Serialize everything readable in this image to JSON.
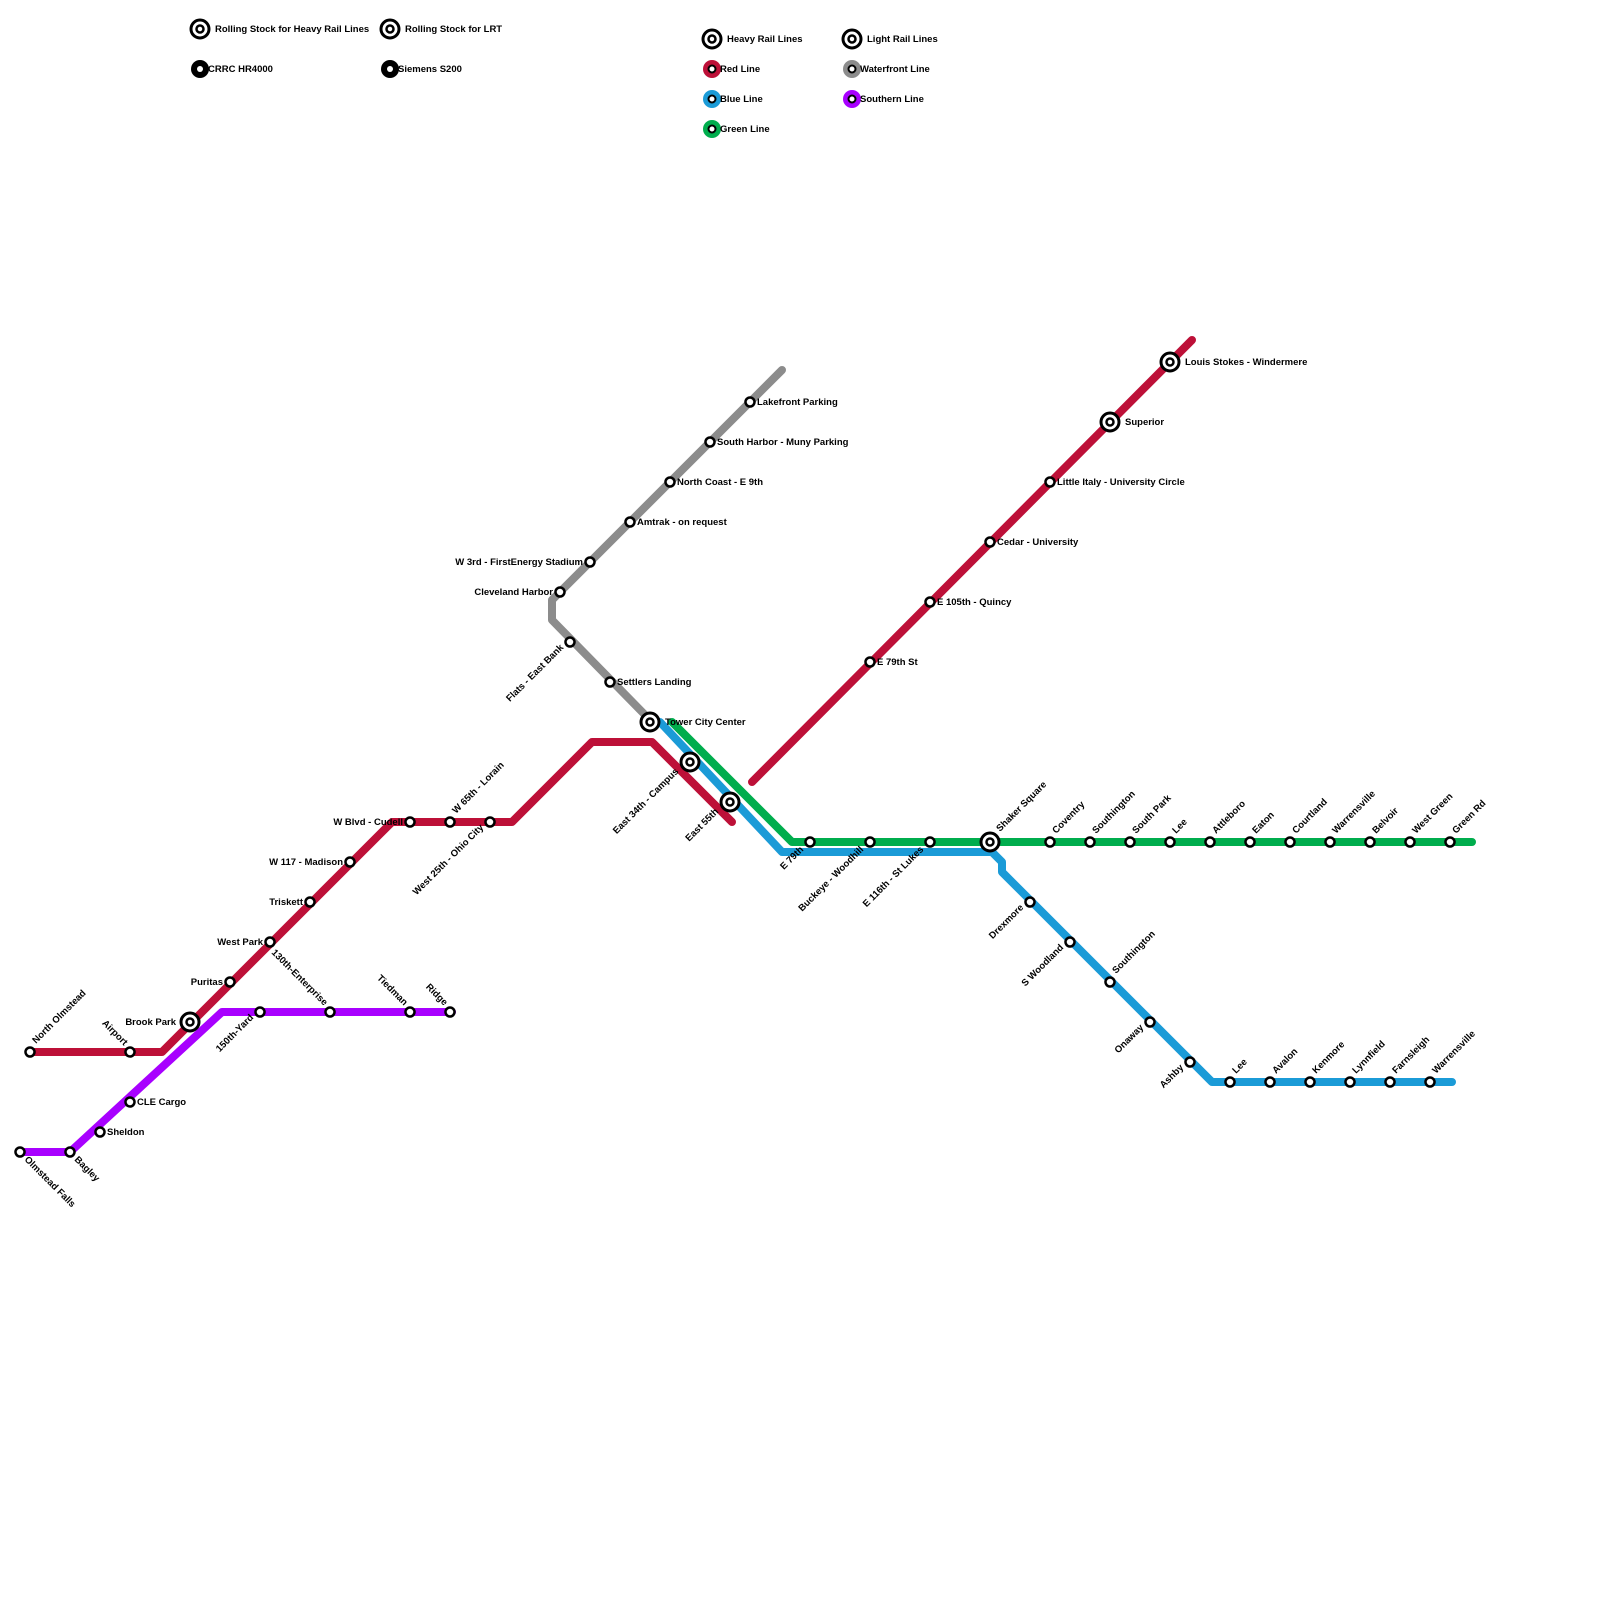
{
  "legend": {
    "rolling_heavy": "Rolling Stock for Heavy Rail Lines",
    "rolling_lrt": "Rolling Stock for LRT",
    "cr_hr4000": "CRRC HR4000",
    "siemens": "Siemens S200",
    "heavy_rail": "Heavy Rail Lines",
    "light_rail": "Light Rail Lines",
    "red_line": "Red Line",
    "blue_line": "Blue Line",
    "green_line": "Green Line",
    "waterfront_line": "Waterfront Line",
    "southern_line": "Southern Line"
  },
  "colors": {
    "red": "#bd1038",
    "blue": "#1b9bd7",
    "green": "#00ad4d",
    "gray": "#8c8c8c",
    "purple": "#a800ff"
  },
  "stations": {
    "north_olmstead": "North Olmstead",
    "airport": "Airport",
    "brook_park": "Brook Park",
    "puritas": "Puritas",
    "west_park": "West Park",
    "triskett": "Triskett",
    "w117": "W 117 - Madison",
    "w_blvd": "W Blvd - Cudell",
    "w65": "W 65th - Lorain",
    "w25": "West 25th - Ohio City",
    "e34": "East 34th - Campus",
    "e55": "East 55th",
    "tower_city": "Tower City Center",
    "settlers": "Settlers Landing",
    "flats": "Flats - East Bank",
    "cleveland_harbor": "Cleveland Harbor",
    "w3": "W 3rd - FirstEnergy Stadium",
    "amtrak": "Amtrak - on request",
    "north_coast": "North Coast - E 9th",
    "south_harbor": "South Harbor - Muny Parking",
    "lakefront": "Lakefront Parking",
    "e79_red": "E 79th St",
    "e105": "E 105th - Quincy",
    "cedar": "Cedar - University",
    "little_italy": "Little Italy - University Circle",
    "superior": "Superior",
    "louis_stokes": "Louis Stokes - Windermere",
    "e79_trunk": "E 79th",
    "buckeye": "Buckeye - Woodhill",
    "e116": "E 116th - St Lukes",
    "shaker_square": "Shaker Square",
    "coventry": "Coventry",
    "southington_g": "Southington",
    "south_park": "South Park",
    "lee_g": "Lee",
    "attleboro": "Attleboro",
    "eaton": "Eaton",
    "courtland": "Courtland",
    "warrensville_g": "Warrensville",
    "belvoir": "Belvoir",
    "west_green": "West Green",
    "green_rd": "Green Rd",
    "drexmore": "Drexmore",
    "s_woodland": "S Woodland",
    "southington_b": "Southington",
    "onaway": "Onaway",
    "ashby": "Ashby",
    "lee_b": "Lee",
    "avalon": "Avalon",
    "kenmore": "Kenmore",
    "lynnfield": "Lynnfield",
    "farnsleigh": "Farnsleigh",
    "warrensville_b": "Warrensville",
    "olmstead_falls": "Olmstead Falls",
    "bagley": "Bagley",
    "sheldon": "Sheldon",
    "cle_cargo": "CLE Cargo",
    "yard150": "150th-Yard",
    "enterprise": "130th-Enterprise",
    "tiedman": "Tiedman",
    "ridge": "Ridge"
  }
}
